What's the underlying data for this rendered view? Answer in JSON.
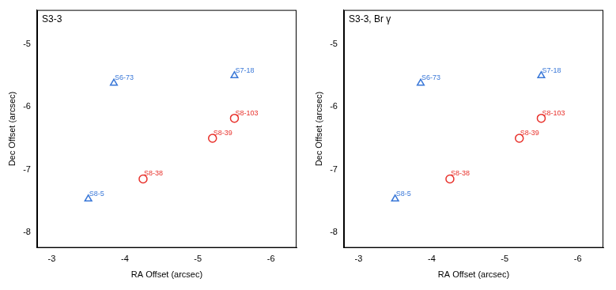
{
  "chart_data": [
    {
      "type": "scatter",
      "title": "S3-3",
      "x_label": "RA Offset (arcsec)",
      "y_label": "Dec Offset (arcsec)",
      "xlim": [
        -2.8,
        -6.35
      ],
      "xticks": [
        -3,
        -4,
        -5,
        -6
      ],
      "ylim": [
        -8.25,
        -4.45
      ],
      "yticks": [
        -8,
        -7,
        -6,
        -5
      ],
      "grid": false,
      "series": [
        {
          "color": "#e8302a",
          "marker": "circle",
          "labels": [
            "S8-103",
            "S8-39",
            "S8-38"
          ],
          "x": [
            -5.5,
            -5.2,
            -4.25
          ],
          "y": [
            -6.18,
            -6.5,
            -7.15
          ]
        },
        {
          "color": "#3a78d8",
          "marker": "triangle",
          "labels": [
            "S6-73",
            "S7-18",
            "S8-5"
          ],
          "x": [
            -3.85,
            -5.5,
            -3.5
          ],
          "y": [
            -5.62,
            -5.5,
            -7.47
          ]
        }
      ]
    },
    {
      "type": "scatter",
      "title": "S3-3, Br γ",
      "x_label": "RA Offset (arcsec)",
      "y_label": "Dec Offset (arcsec)",
      "xlim": [
        -2.8,
        -6.35
      ],
      "xticks": [
        -3,
        -4,
        -5,
        -6
      ],
      "ylim": [
        -8.25,
        -4.45
      ],
      "yticks": [
        -8,
        -7,
        -6,
        -5
      ],
      "grid": false,
      "series": [
        {
          "color": "#e8302a",
          "marker": "circle",
          "labels": [
            "S8-103",
            "S8-39",
            "S8-38"
          ],
          "x": [
            -5.5,
            -5.2,
            -4.25
          ],
          "y": [
            -6.18,
            -6.5,
            -7.15
          ]
        },
        {
          "color": "#3a78d8",
          "marker": "triangle",
          "labels": [
            "S6-73",
            "S7-18",
            "S8-5"
          ],
          "x": [
            -3.85,
            -5.5,
            -3.5
          ],
          "y": [
            -5.62,
            -5.5,
            -7.47
          ]
        }
      ]
    }
  ]
}
